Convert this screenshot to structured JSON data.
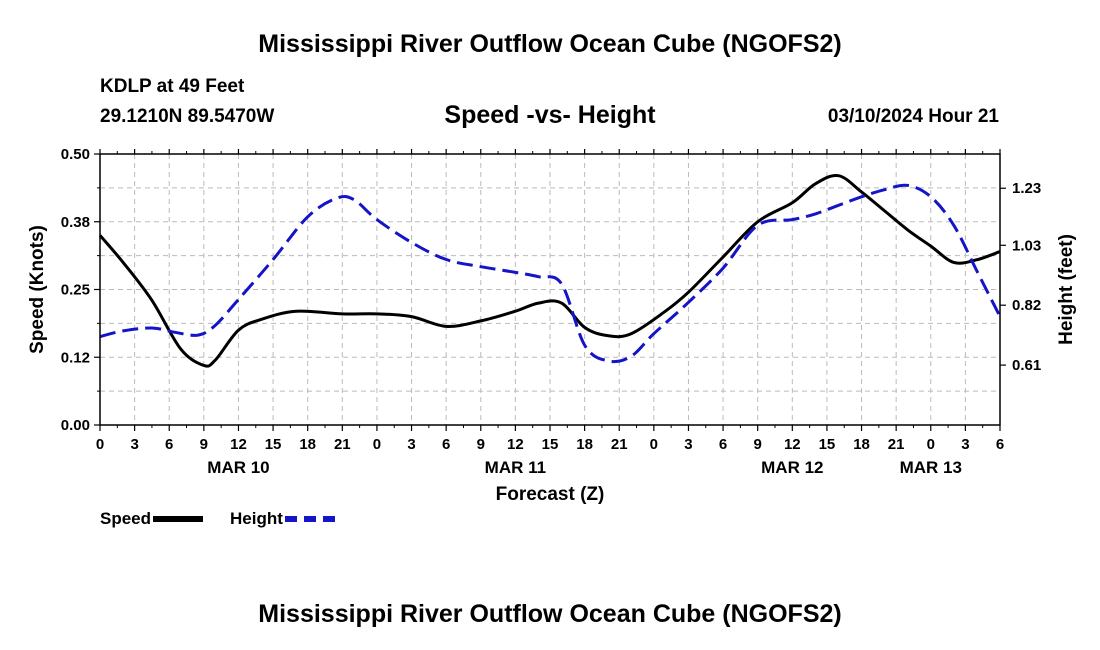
{
  "header": {
    "title": "Mississippi River Outflow Ocean Cube (NGOFS2)",
    "station": "KDLP at 49 Feet",
    "coords": "29.1210N  89.5470W",
    "subtitle": "Speed -vs- Height",
    "datetime": "03/10/2024 Hour 21",
    "footer_title": "Mississippi River Outflow Ocean Cube (NGOFS2)"
  },
  "legend": {
    "speed_label": "Speed",
    "height_label": "Height"
  },
  "chart_data": {
    "type": "line",
    "title": "Speed -vs- Height",
    "xlabel": "Forecast (Z)",
    "ylabel_left": "Speed (Knots)",
    "ylabel_right": "Height (feet)",
    "x_range_hours": [
      0,
      78
    ],
    "x_tick_labels": [
      "0",
      "3",
      "6",
      "9",
      "12",
      "15",
      "18",
      "21",
      "0",
      "3",
      "6",
      "9",
      "12",
      "15",
      "18",
      "21",
      "0",
      "3",
      "6",
      "9",
      "12",
      "15",
      "18",
      "21",
      "0",
      "3",
      "6"
    ],
    "date_labels": [
      {
        "hour": 12,
        "label": "MAR 10"
      },
      {
        "hour": 36,
        "label": "MAR 11"
      },
      {
        "hour": 60,
        "label": "MAR 12"
      },
      {
        "hour": 72,
        "label": "MAR 13"
      }
    ],
    "ylim_left": [
      0,
      0.5
    ],
    "yticks_left": [
      "0.00",
      "0.12",
      "0.25",
      "0.38",
      "0.50"
    ],
    "ylim_right": [
      0.4,
      1.35
    ],
    "yticks_right": [
      {
        "value": 0.61,
        "label": "0.61"
      },
      {
        "value": 0.82,
        "label": "0.82"
      },
      {
        "value": 1.03,
        "label": "1.03"
      },
      {
        "value": 1.23,
        "label": "1.23"
      }
    ],
    "colors": {
      "speed": "#000000",
      "height": "#1414c8",
      "grid": "#bbbbbb"
    },
    "series": [
      {
        "name": "Speed",
        "axis": "left",
        "x": [
          0,
          2,
          4.5,
          7,
          9,
          10,
          12,
          14,
          17,
          21,
          24,
          27,
          30,
          33,
          36,
          38,
          40,
          42,
          44,
          46,
          49,
          51,
          54,
          57,
          60,
          62,
          64,
          66,
          68,
          70,
          72,
          74,
          76,
          78
        ],
        "values": [
          0.35,
          0.3,
          0.23,
          0.14,
          0.11,
          0.12,
          0.175,
          0.195,
          0.21,
          0.205,
          0.205,
          0.2,
          0.182,
          0.192,
          0.21,
          0.225,
          0.225,
          0.18,
          0.165,
          0.168,
          0.21,
          0.245,
          0.31,
          0.375,
          0.41,
          0.445,
          0.46,
          0.43,
          0.395,
          0.36,
          0.33,
          0.3,
          0.305,
          0.32
        ]
      },
      {
        "name": "Height",
        "axis": "right",
        "x": [
          0,
          2,
          4.5,
          6.5,
          8.5,
          10,
          12,
          15,
          18,
          20.5,
          22,
          24,
          27,
          30,
          33,
          36,
          38,
          40,
          42,
          44,
          46,
          48,
          51,
          54,
          57,
          60,
          62,
          64,
          66,
          68,
          70,
          72,
          74,
          76,
          78
        ],
        "values": [
          0.71,
          0.73,
          0.74,
          0.725,
          0.715,
          0.75,
          0.84,
          0.98,
          1.13,
          1.195,
          1.19,
          1.12,
          1.04,
          0.98,
          0.955,
          0.935,
          0.92,
          0.895,
          0.68,
          0.625,
          0.64,
          0.72,
          0.83,
          0.95,
          1.1,
          1.12,
          1.14,
          1.17,
          1.2,
          1.225,
          1.24,
          1.2,
          1.1,
          0.94,
          0.78
        ]
      }
    ]
  }
}
